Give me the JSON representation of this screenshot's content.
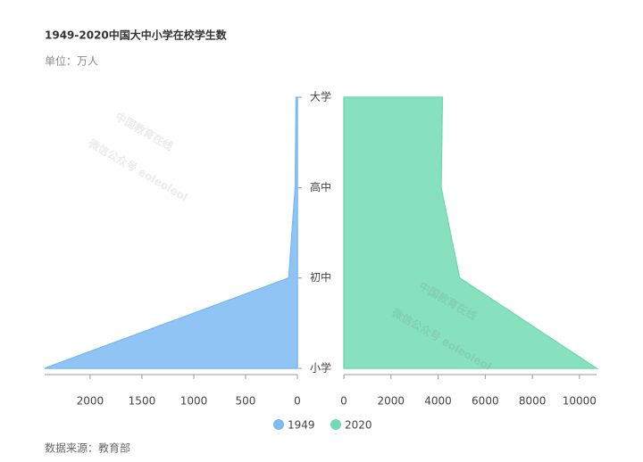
{
  "chart_data": {
    "type": "area",
    "title": "1949-2020中国大中小学在校学生数",
    "subtitle": "单位：万人",
    "categories": [
      "大学",
      "高中",
      "初中",
      "小学"
    ],
    "series": [
      {
        "name": "1949",
        "color": "#7cbaf2",
        "values": [
          12,
          21,
          83,
          2439
        ],
        "xlim": [
          2439,
          0
        ],
        "xticks": [
          2000,
          1500,
          1000,
          500,
          0
        ]
      },
      {
        "name": "2020",
        "color": "#72dbb3",
        "values": [
          4183,
          4128,
          4914,
          10725
        ],
        "xlim": [
          0,
          10725
        ],
        "xticks": [
          0,
          2000,
          4000,
          6000,
          8000,
          10000
        ]
      }
    ],
    "legend": "bottom",
    "source": "数据来源：教育部",
    "watermarks": [
      "中国教育在线",
      "微信公众号 eoleoleol"
    ]
  }
}
